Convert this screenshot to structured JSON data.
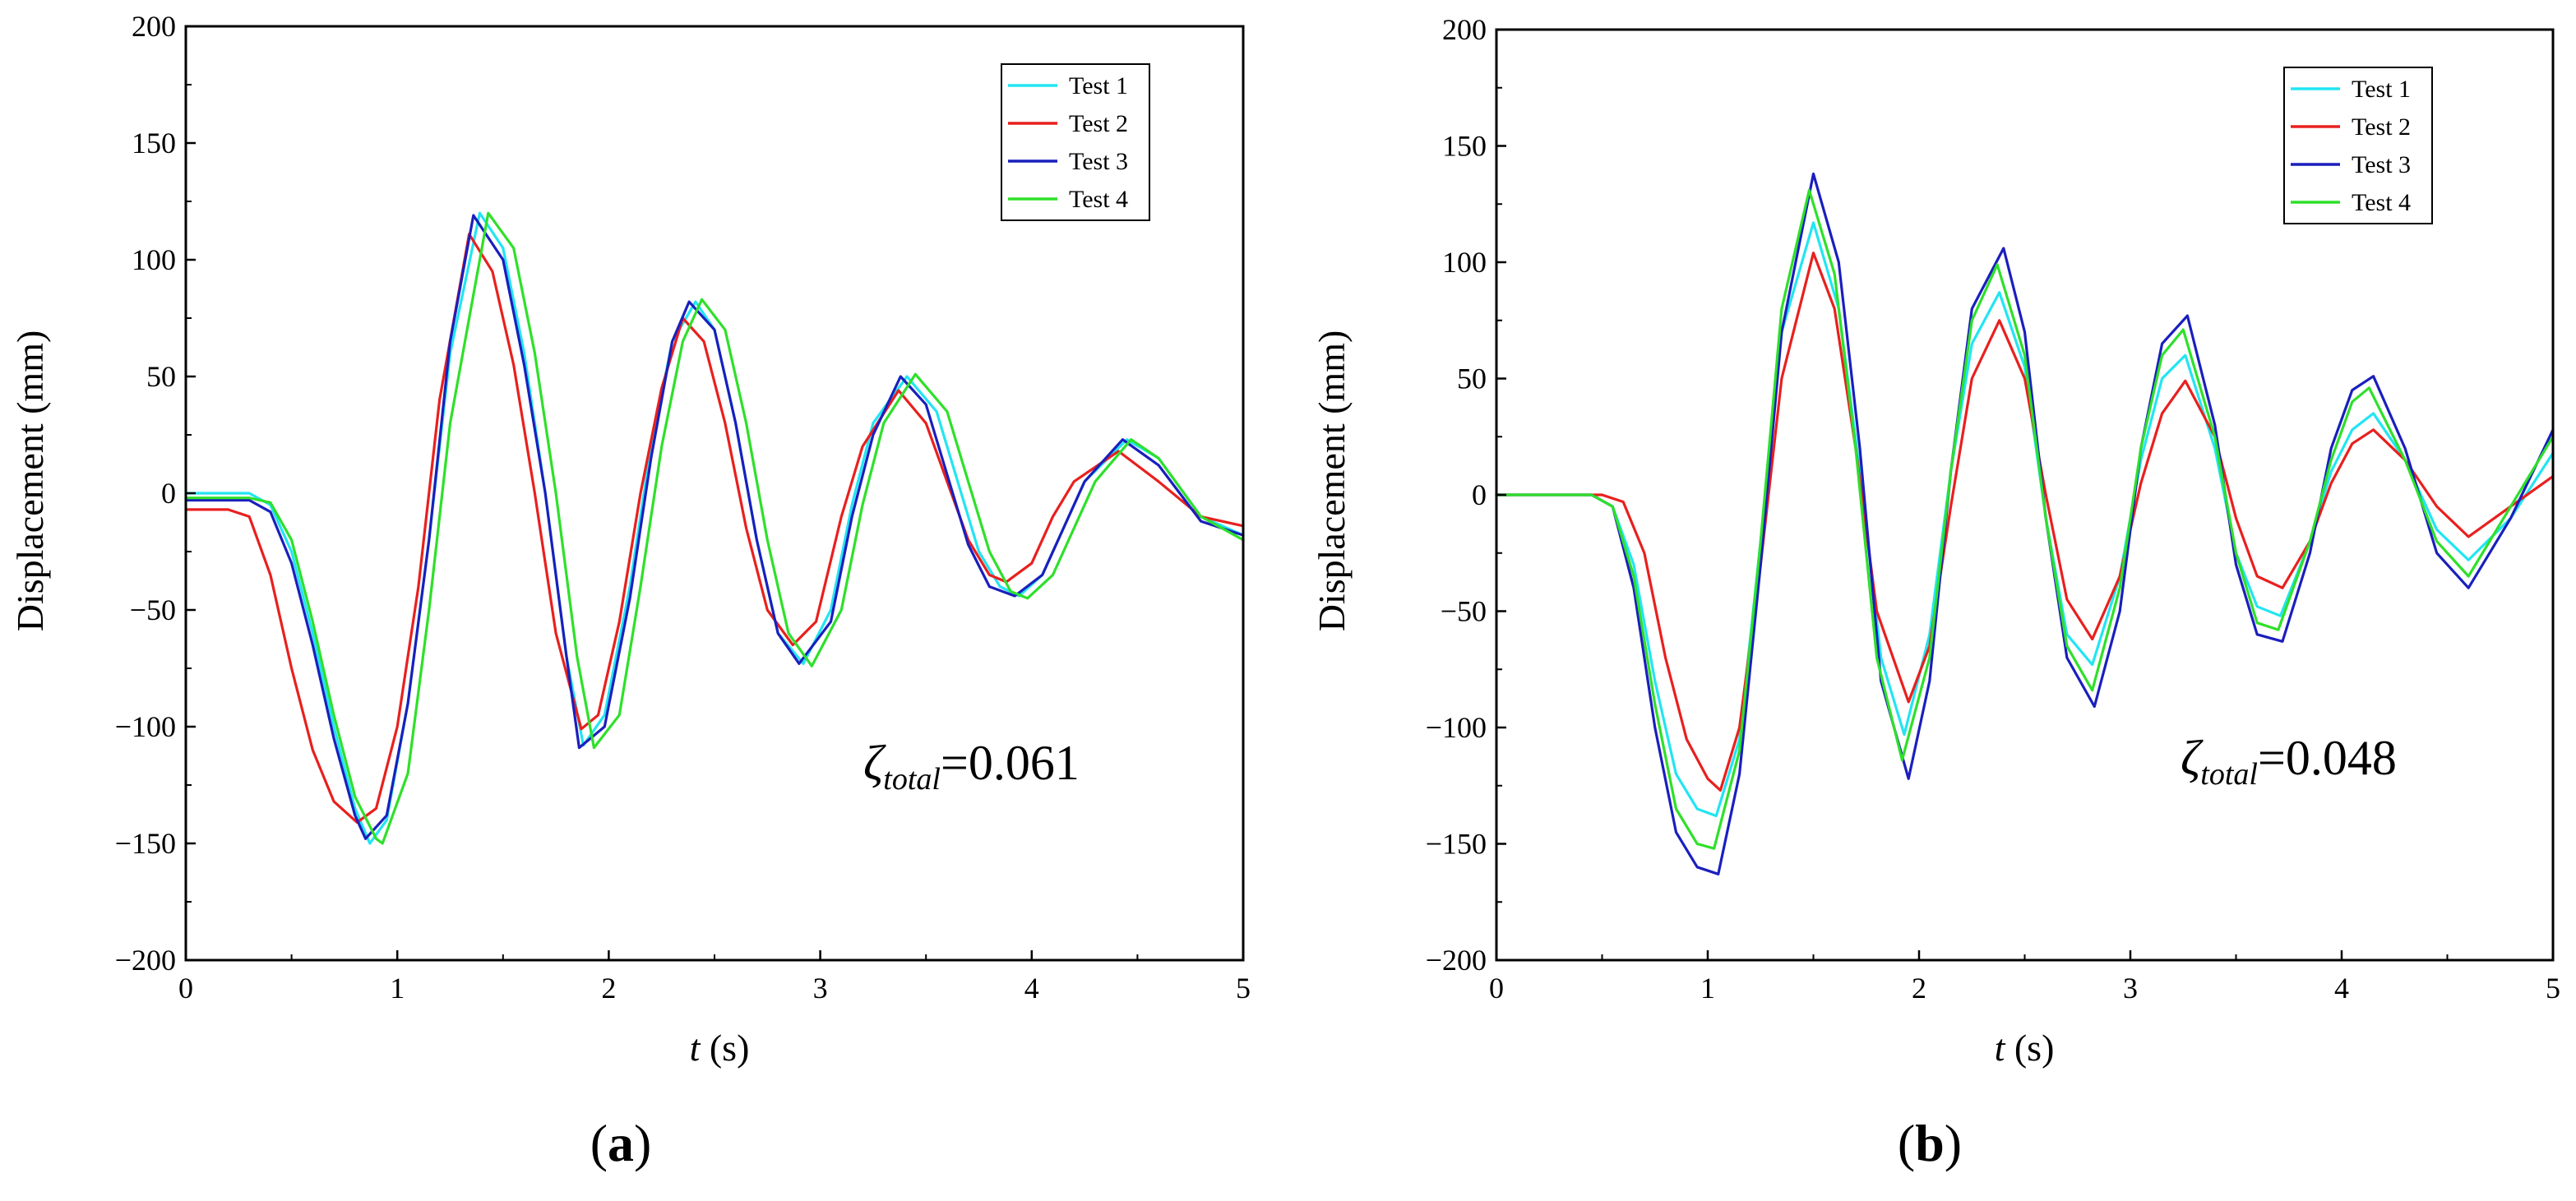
{
  "chart_data": [
    {
      "type": "line",
      "panel_label": "a",
      "title": "",
      "xlabel_var": "t",
      "xlabel_unit": " (s)",
      "ylabel": "Displacement  (mm)",
      "xlim": [
        0,
        5
      ],
      "ylim": [
        -200,
        200
      ],
      "xticks": [
        0,
        1,
        2,
        3,
        4,
        5
      ],
      "yticks": [
        -200,
        -150,
        -100,
        -50,
        0,
        50,
        100,
        150,
        200
      ],
      "legend_position": "top-right",
      "annotation": {
        "symbol": "ζ",
        "subscript": "total",
        "value": "=0.061"
      },
      "series": [
        {
          "name": "Test 1",
          "color": "#22e5f2",
          "x": [
            0,
            0.3,
            0.4,
            0.5,
            0.6,
            0.7,
            0.8,
            0.87,
            0.95,
            1.05,
            1.15,
            1.25,
            1.39,
            1.5,
            1.6,
            1.7,
            1.8,
            1.88,
            1.98,
            2.1,
            2.2,
            2.3,
            2.41,
            2.5,
            2.6,
            2.7,
            2.8,
            2.92,
            3.05,
            3.15,
            3.25,
            3.41,
            3.55,
            3.65,
            3.75,
            3.85,
            3.94,
            4.05,
            4.15,
            4.25,
            4.45,
            4.6,
            4.8,
            5.0
          ],
          "y": [
            0,
            0,
            -5,
            -25,
            -60,
            -100,
            -135,
            -150,
            -140,
            -90,
            -20,
            60,
            120,
            105,
            60,
            0,
            -70,
            -108,
            -95,
            -40,
            20,
            65,
            82,
            70,
            30,
            -20,
            -60,
            -73,
            -50,
            -5,
            30,
            50,
            35,
            5,
            -25,
            -40,
            -44,
            -35,
            -15,
            5,
            23,
            15,
            -10,
            -18
          ]
        },
        {
          "name": "Test 2",
          "color": "#e8201e",
          "x": [
            0,
            0.2,
            0.3,
            0.4,
            0.5,
            0.6,
            0.7,
            0.81,
            0.9,
            1.0,
            1.1,
            1.2,
            1.34,
            1.45,
            1.55,
            1.65,
            1.75,
            1.87,
            1.95,
            2.05,
            2.15,
            2.25,
            2.35,
            2.45,
            2.55,
            2.65,
            2.75,
            2.87,
            2.98,
            3.1,
            3.2,
            3.37,
            3.5,
            3.6,
            3.7,
            3.8,
            3.88,
            4.0,
            4.1,
            4.2,
            4.41,
            4.6,
            4.8,
            5.0
          ],
          "y": [
            -7,
            -7,
            -10,
            -35,
            -75,
            -110,
            -132,
            -141,
            -135,
            -100,
            -40,
            40,
            111,
            95,
            55,
            0,
            -60,
            -101,
            -95,
            -55,
            0,
            45,
            75,
            65,
            30,
            -15,
            -50,
            -65,
            -55,
            -10,
            20,
            44,
            30,
            5,
            -20,
            -35,
            -38,
            -30,
            -10,
            5,
            18,
            5,
            -10,
            -14
          ]
        },
        {
          "name": "Test 3",
          "color": "#1a1fbd",
          "x": [
            0,
            0.3,
            0.4,
            0.5,
            0.6,
            0.7,
            0.8,
            0.85,
            0.95,
            1.05,
            1.15,
            1.25,
            1.36,
            1.5,
            1.6,
            1.7,
            1.8,
            1.86,
            1.98,
            2.1,
            2.2,
            2.3,
            2.38,
            2.5,
            2.6,
            2.7,
            2.8,
            2.9,
            3.05,
            3.15,
            3.25,
            3.38,
            3.5,
            3.6,
            3.7,
            3.8,
            3.92,
            4.05,
            4.15,
            4.25,
            4.43,
            4.6,
            4.8,
            5.0
          ],
          "y": [
            -3,
            -3,
            -8,
            -30,
            -65,
            -105,
            -138,
            -148,
            -138,
            -90,
            -20,
            65,
            119,
            100,
            55,
            0,
            -70,
            -109,
            -100,
            -45,
            15,
            65,
            82,
            70,
            30,
            -20,
            -60,
            -73,
            -55,
            -10,
            25,
            50,
            38,
            8,
            -22,
            -40,
            -44,
            -35,
            -15,
            5,
            23,
            12,
            -12,
            -18
          ]
        },
        {
          "name": "Test 4",
          "color": "#2ee02a",
          "x": [
            0,
            0.3,
            0.4,
            0.5,
            0.6,
            0.7,
            0.8,
            0.9,
            0.93,
            1.05,
            1.15,
            1.25,
            1.43,
            1.55,
            1.65,
            1.75,
            1.85,
            1.93,
            2.05,
            2.15,
            2.25,
            2.35,
            2.44,
            2.55,
            2.65,
            2.75,
            2.85,
            2.96,
            3.1,
            3.2,
            3.3,
            3.45,
            3.6,
            3.7,
            3.8,
            3.9,
            3.98,
            4.1,
            4.2,
            4.3,
            4.47,
            4.6,
            4.8,
            5.0
          ],
          "y": [
            -2,
            -2,
            -4,
            -20,
            -55,
            -95,
            -130,
            -148,
            -150,
            -120,
            -50,
            30,
            120,
            105,
            60,
            0,
            -70,
            -109,
            -95,
            -40,
            20,
            65,
            83,
            70,
            30,
            -20,
            -60,
            -74,
            -50,
            -5,
            30,
            51,
            35,
            5,
            -25,
            -42,
            -45,
            -35,
            -15,
            5,
            23,
            15,
            -10,
            -20
          ]
        }
      ]
    },
    {
      "type": "line",
      "panel_label": "b",
      "title": "",
      "xlabel_var": "t",
      "xlabel_unit": " (s)",
      "ylabel": "Displacement  (mm)",
      "xlim": [
        0,
        5
      ],
      "ylim": [
        -200,
        200
      ],
      "xticks": [
        0,
        1,
        2,
        3,
        4,
        5
      ],
      "yticks": [
        -200,
        -150,
        -100,
        -50,
        0,
        50,
        100,
        150,
        200
      ],
      "legend_position": "top-right",
      "annotation": {
        "symbol": "ζ",
        "subscript": "total",
        "value": "=0.048"
      },
      "series": [
        {
          "name": "Test 1",
          "color": "#22e5f2",
          "x": [
            0,
            0.45,
            0.55,
            0.65,
            0.75,
            0.85,
            0.95,
            1.04,
            1.15,
            1.25,
            1.35,
            1.5,
            1.62,
            1.72,
            1.82,
            1.93,
            2.05,
            2.15,
            2.25,
            2.38,
            2.5,
            2.6,
            2.7,
            2.82,
            2.95,
            3.05,
            3.15,
            3.26,
            3.4,
            3.5,
            3.6,
            3.71,
            3.85,
            3.95,
            4.05,
            4.15,
            4.3,
            4.45,
            4.6,
            4.8,
            5.0
          ],
          "y": [
            0,
            0,
            -5,
            -30,
            -80,
            -120,
            -135,
            -138,
            -105,
            -20,
            70,
            117,
            80,
            10,
            -70,
            -103,
            -60,
            10,
            65,
            87,
            55,
            -10,
            -60,
            -73,
            -35,
            15,
            50,
            60,
            20,
            -25,
            -48,
            -52,
            -20,
            10,
            28,
            35,
            15,
            -15,
            -28,
            -10,
            18
          ]
        },
        {
          "name": "Test 2",
          "color": "#e8201e",
          "x": [
            0,
            0.5,
            0.6,
            0.7,
            0.8,
            0.9,
            1.0,
            1.06,
            1.15,
            1.25,
            1.35,
            1.5,
            1.6,
            1.7,
            1.8,
            1.95,
            2.05,
            2.15,
            2.25,
            2.38,
            2.5,
            2.6,
            2.7,
            2.82,
            2.95,
            3.05,
            3.15,
            3.26,
            3.4,
            3.5,
            3.6,
            3.72,
            3.85,
            3.95,
            4.05,
            4.15,
            4.3,
            4.45,
            4.6,
            4.8,
            5.0
          ],
          "y": [
            0,
            0,
            -3,
            -25,
            -70,
            -105,
            -122,
            -127,
            -100,
            -30,
            50,
            104,
            80,
            20,
            -50,
            -89,
            -65,
            -5,
            50,
            75,
            50,
            0,
            -45,
            -62,
            -35,
            5,
            35,
            49,
            25,
            -10,
            -35,
            -40,
            -20,
            5,
            22,
            28,
            15,
            -5,
            -18,
            -5,
            8
          ]
        },
        {
          "name": "Test 3",
          "color": "#1a1fbd",
          "x": [
            0,
            0.45,
            0.55,
            0.65,
            0.75,
            0.85,
            0.95,
            1.05,
            1.15,
            1.25,
            1.35,
            1.5,
            1.62,
            1.72,
            1.82,
            1.95,
            2.05,
            2.15,
            2.25,
            2.4,
            2.5,
            2.6,
            2.7,
            2.83,
            2.95,
            3.05,
            3.15,
            3.27,
            3.4,
            3.5,
            3.6,
            3.72,
            3.85,
            3.95,
            4.05,
            4.15,
            4.3,
            4.45,
            4.6,
            4.8,
            5.0
          ],
          "y": [
            0,
            0,
            -5,
            -40,
            -100,
            -145,
            -160,
            -163,
            -120,
            -30,
            70,
            138,
            100,
            20,
            -80,
            -122,
            -80,
            10,
            80,
            106,
            70,
            -10,
            -70,
            -91,
            -50,
            20,
            65,
            77,
            30,
            -30,
            -60,
            -63,
            -25,
            20,
            45,
            51,
            20,
            -25,
            -40,
            -10,
            28
          ]
        },
        {
          "name": "Test 4",
          "color": "#2ee02a",
          "x": [
            0,
            0.45,
            0.55,
            0.65,
            0.75,
            0.85,
            0.95,
            1.03,
            1.15,
            1.25,
            1.35,
            1.48,
            1.6,
            1.7,
            1.8,
            1.92,
            2.05,
            2.15,
            2.25,
            2.37,
            2.5,
            2.6,
            2.7,
            2.82,
            2.95,
            3.05,
            3.15,
            3.25,
            3.4,
            3.5,
            3.6,
            3.7,
            3.85,
            3.95,
            4.05,
            4.13,
            4.3,
            4.45,
            4.6,
            4.8,
            5.0
          ],
          "y": [
            0,
            0,
            -5,
            -35,
            -90,
            -135,
            -150,
            -152,
            -110,
            -20,
            80,
            131,
            95,
            20,
            -70,
            -114,
            -70,
            10,
            75,
            99,
            60,
            -10,
            -65,
            -84,
            -40,
            20,
            60,
            71,
            25,
            -25,
            -55,
            -58,
            -20,
            15,
            40,
            46,
            15,
            -20,
            -35,
            -5,
            25
          ]
        }
      ]
    }
  ]
}
